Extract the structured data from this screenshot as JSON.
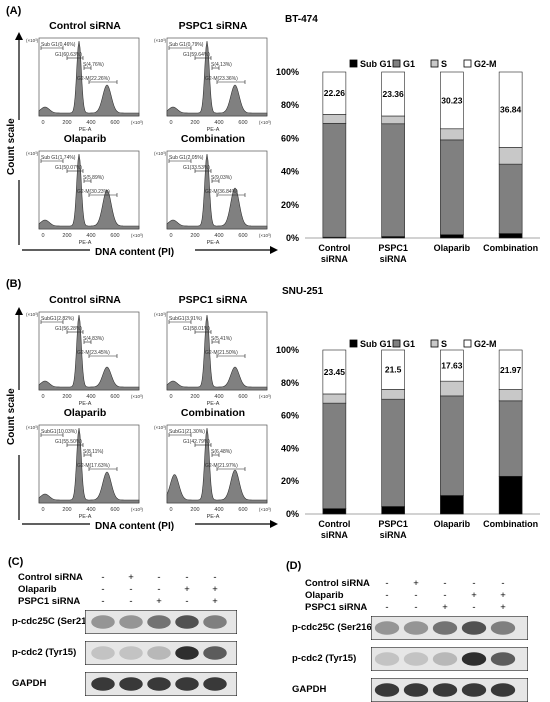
{
  "panels": {
    "A": {
      "label": "(A)",
      "cell_line": "BT-474",
      "y_axis_title": "Count scale",
      "x_axis_title": "DNA content (PI)",
      "histograms": [
        {
          "title": "Control siRNA",
          "gates": {
            "subg1": "Sub G1(0.46%)",
            "g1": "G1(60.63%)",
            "s": "S(4.76%)",
            "g2m": "G2-M(22.26%)"
          }
        },
        {
          "title": "PSPC1 siRNA",
          "gates": {
            "subg1": "Sub G1(0.79%)",
            "g1": "G1(59.64%)",
            "s": "S(4.13%)",
            "g2m": "G2-M(23.36%)"
          }
        },
        {
          "title": "Olaparib",
          "gates": {
            "subg1": "Sub G1(1.74%)",
            "g1": "G1(50.07%)",
            "s": "S(5.89%)",
            "g2m": "G2-M(30.23%)"
          }
        },
        {
          "title": "Combination",
          "gates": {
            "subg1": "Sub G1(2.05%)",
            "g1": "G1(33.53%)",
            "s": "S(9.03%)",
            "g2m": "G2-M(36.84%)"
          }
        }
      ],
      "hist_axis": {
        "xlabel": "PE-A",
        "xticks": [
          "0",
          "200",
          "400",
          "600"
        ],
        "xunit": "(×10³)",
        "yunit": "(×10³)"
      }
    },
    "B": {
      "label": "(B)",
      "cell_line": "SNU-251",
      "y_axis_title": "Count scale",
      "x_axis_title": "DNA content (PI)",
      "histograms": [
        {
          "title": "Control siRNA",
          "gates": {
            "subg1": "SubG1(2.82%)",
            "g1": "G1(56.28%)",
            "s": "S(4.83%)",
            "g2m": "G2-M(23.45%)"
          }
        },
        {
          "title": "PSPC1 siRNA",
          "gates": {
            "subg1": "SubG1(3.91%)",
            "g1": "G1(58.01%)",
            "s": "S(5.41%)",
            "g2m": "G2-M(21.50%)"
          }
        },
        {
          "title": "Olaparib",
          "gates": {
            "subg1": "SubG1(10.03%)",
            "g1": "G1(55.50%)",
            "s": "S(8.11%)",
            "g2m": "G2-M(17.63%)"
          }
        },
        {
          "title": "Combination",
          "gates": {
            "subg1": "SubG1(21.30%)",
            "g1": "G1(42.79%)",
            "s": "S(6.48%)",
            "g2m": "G2-M(21.97%)"
          }
        }
      ],
      "hist_axis": {
        "xlabel": "PE-A",
        "xticks": [
          "0",
          "200",
          "400",
          "600"
        ],
        "xunit": "(×10³)",
        "yunit": "(×10³)"
      }
    },
    "C": {
      "label": "(C)",
      "conditions": [
        "Control siRNA",
        "Olaparib",
        "PSPC1 siRNA"
      ],
      "signs": [
        [
          "-",
          "+",
          "-",
          "-",
          "-"
        ],
        [
          "-",
          "-",
          "-",
          "+",
          "+"
        ],
        [
          "-",
          "-",
          "+",
          "-",
          "+"
        ]
      ],
      "blots": [
        "p-cdc25C (Ser216)",
        "p-cdc2 (Tyr15)",
        "GAPDH"
      ]
    },
    "D": {
      "label": "(D)",
      "conditions": [
        "Control siRNA",
        "Olaparib",
        "PSPC1 siRNA"
      ],
      "signs": [
        [
          "-",
          "+",
          "-",
          "-",
          "-"
        ],
        [
          "-",
          "-",
          "-",
          "+",
          "+"
        ],
        [
          "-",
          "-",
          "+",
          "-",
          "+"
        ]
      ],
      "blots": [
        "p-cdc25C (Ser216)",
        "p-cdc2 (Tyr15)",
        "GAPDH"
      ]
    }
  },
  "chart_data": [
    {
      "type": "bar",
      "stacked": true,
      "panel": "A",
      "categories": [
        "Control siRNA",
        "PSPC1 siRNA",
        "Olaparib",
        "Combination"
      ],
      "series": [
        {
          "name": "Sub G1",
          "color": "#000000",
          "values": [
            0.5,
            0.9,
            2.0,
            2.7
          ]
        },
        {
          "name": "G1",
          "color": "#808080",
          "values": [
            68.6,
            67.9,
            57.1,
            41.8
          ]
        },
        {
          "name": "S",
          "color": "#c8c8c8",
          "values": [
            5.4,
            4.7,
            6.7,
            10.1
          ]
        },
        {
          "name": "G2-M",
          "color": "#ffffff",
          "values": [
            25.5,
            26.5,
            34.2,
            45.4
          ]
        }
      ],
      "bar_labels": [
        "22.26",
        "23.36",
        "30.23",
        "36.84"
      ],
      "ylim": [
        0,
        100
      ],
      "yticks": [
        "0%",
        "20%",
        "40%",
        "60%",
        "80%",
        "100%"
      ],
      "legend": "top"
    },
    {
      "type": "bar",
      "stacked": true,
      "panel": "B",
      "categories": [
        "Control siRNA",
        "PSPC1 siRNA",
        "Olaparib",
        "Combination"
      ],
      "series": [
        {
          "name": "Sub G1",
          "color": "#000000",
          "values": [
            3.3,
            4.6,
            11.3,
            23.0
          ]
        },
        {
          "name": "G1",
          "color": "#808080",
          "values": [
            64.3,
            65.4,
            60.7,
            46.0
          ]
        },
        {
          "name": "S",
          "color": "#c8c8c8",
          "values": [
            5.6,
            6.0,
            9.0,
            6.9
          ]
        },
        {
          "name": "G2-M",
          "color": "#ffffff",
          "values": [
            26.8,
            24.0,
            19.0,
            24.1
          ]
        }
      ],
      "bar_labels": [
        "23.45",
        "21.5",
        "17.63",
        "21.97"
      ],
      "ylim": [
        0,
        100
      ],
      "yticks": [
        "0%",
        "20%",
        "40%",
        "60%",
        "80%",
        "100%"
      ],
      "legend": "top"
    }
  ]
}
